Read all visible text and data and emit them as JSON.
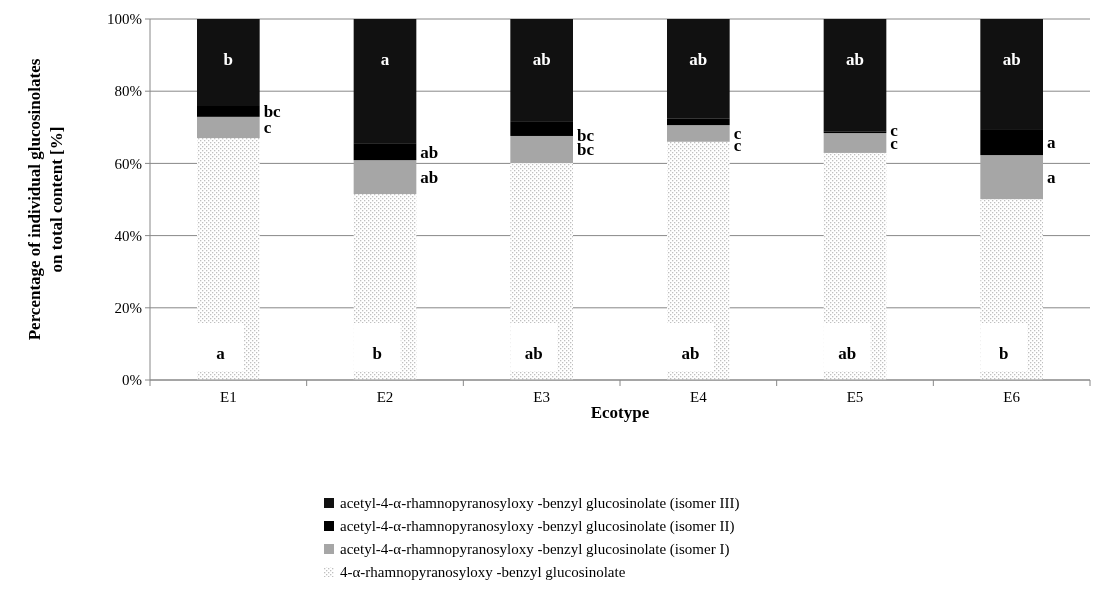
{
  "chart_data": {
    "type": "bar",
    "stacked": true,
    "xlabel": "Ecotype",
    "ylabel": "Percentage of individual glucosinolates\non total content [%]",
    "categories": [
      "E1",
      "E2",
      "E3",
      "E4",
      "E5",
      "E6"
    ],
    "series": [
      {
        "name": "4-α-rhamnopyranosyloxy -benzyl glucosinolate",
        "color": "#bfbfbf",
        "values": [
          67.0,
          51.5,
          60.1,
          66.0,
          62.9,
          50.1
        ],
        "value_labels": [
          "a",
          "b",
          "ab",
          "ab",
          "ab",
          "b"
        ]
      },
      {
        "name": "acetyl-4-α-rhamnopyranosyloxy -benzyl glucosinolate (isomer I)",
        "color": "#a6a6a6",
        "values": [
          5.9,
          9.4,
          7.5,
          4.6,
          5.5,
          12.2
        ],
        "value_labels": [
          "c",
          "ab",
          "bc",
          "c",
          "c",
          "a"
        ]
      },
      {
        "name": "acetyl-4-α-rhamnopyranosyloxy -benzyl glucosinolate (isomer II)",
        "color": "#000000",
        "values": [
          3.0,
          4.7,
          4.1,
          1.9,
          0.5,
          7.2
        ],
        "value_labels": [
          "bc",
          "ab",
          "bc",
          "c",
          "c",
          "a"
        ]
      },
      {
        "name": "acetyl-4-α-rhamnopyranosyloxy -benzyl glucosinolate (isomer III)",
        "color": "#111111",
        "values": [
          24.1,
          34.4,
          28.3,
          27.5,
          31.1,
          30.5
        ],
        "value_labels": [
          "b",
          "a",
          "ab",
          "ab",
          "ab",
          "ab"
        ]
      }
    ],
    "ylim": [
      0,
      100
    ],
    "yticks": [
      {
        "value": 0,
        "label": "0%"
      },
      {
        "value": 20,
        "label": "20%"
      },
      {
        "value": 40,
        "label": "40%"
      },
      {
        "value": 60,
        "label": "60%"
      },
      {
        "value": 80,
        "label": "80%"
      },
      {
        "value": 100,
        "label": "100%"
      }
    ],
    "grid": "y",
    "legend": "bottom"
  }
}
